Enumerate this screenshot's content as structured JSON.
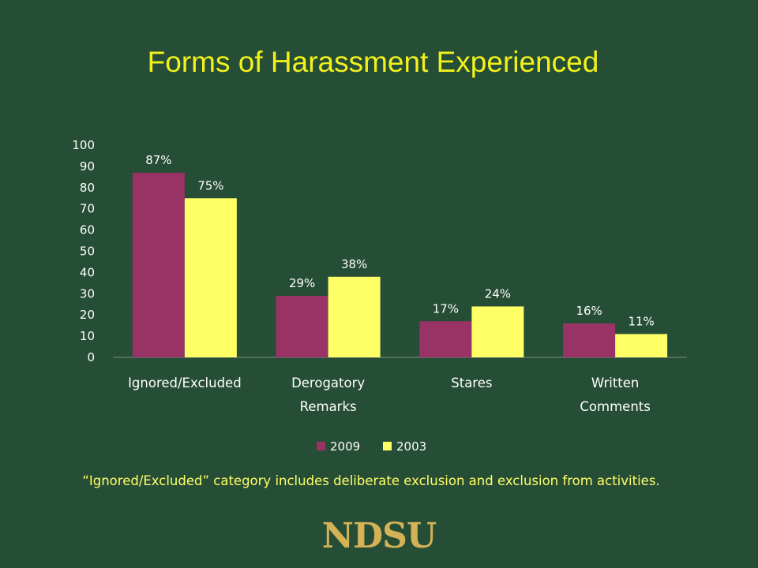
{
  "slide": {
    "title": "Forms of Harassment Experienced",
    "note": "“Ignored/Excluded” category includes deliberate exclusion and exclusion from activities.",
    "logo": "NDSU"
  },
  "colors": {
    "background": "#264d36",
    "title": "#f2f21a",
    "series_2009": "#993366",
    "series_2003": "#ffff66",
    "note": "#ffff66",
    "logo": "#d4b255"
  },
  "chart_data": {
    "type": "bar",
    "categories": [
      [
        "Ignored/Excluded"
      ],
      [
        "Derogatory",
        "Remarks"
      ],
      [
        "Stares"
      ],
      [
        "Written",
        "Comments"
      ]
    ],
    "series": [
      {
        "name": "2009",
        "values": [
          87,
          29,
          17,
          16
        ],
        "labels": [
          "87%",
          "29%",
          "17%",
          "16%"
        ],
        "color": "#993366"
      },
      {
        "name": "2003",
        "values": [
          75,
          38,
          24,
          11
        ],
        "labels": [
          "75%",
          "38%",
          "24%",
          "11%"
        ],
        "color": "#ffff66"
      }
    ],
    "ylim": [
      0,
      100
    ],
    "yticks": [
      0,
      10,
      20,
      30,
      40,
      50,
      60,
      70,
      80,
      90,
      100
    ],
    "grid": false,
    "legend": "bottom"
  }
}
